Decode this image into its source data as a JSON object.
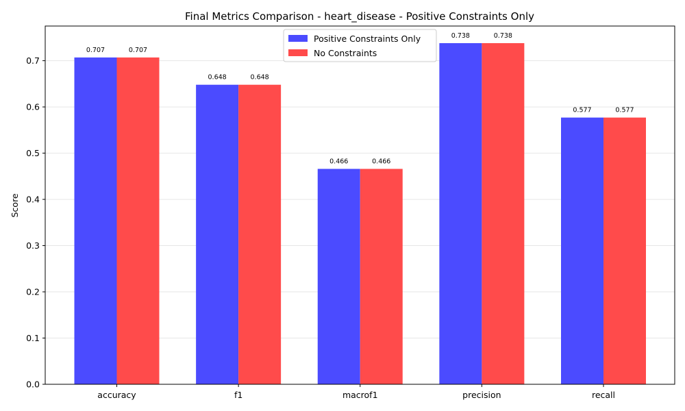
{
  "chart_data": {
    "type": "bar",
    "title": "Final Metrics Comparison - heart_disease - Positive Constraints Only",
    "xlabel": "",
    "ylabel": "Score",
    "categories": [
      "accuracy",
      "f1",
      "macrof1",
      "precision",
      "recall"
    ],
    "series": [
      {
        "name": "Positive Constraints Only",
        "color": "#4b4bff",
        "values": [
          0.707,
          0.648,
          0.466,
          0.738,
          0.577
        ]
      },
      {
        "name": "No Constraints",
        "color": "#ff4b4b",
        "values": [
          0.707,
          0.648,
          0.466,
          0.738,
          0.577
        ]
      }
    ],
    "ylim": [
      0,
      0.775
    ],
    "yticks": [
      "0.0",
      "0.1",
      "0.2",
      "0.3",
      "0.4",
      "0.5",
      "0.6",
      "0.7"
    ],
    "grid": "y",
    "legend_position": "upper center"
  }
}
